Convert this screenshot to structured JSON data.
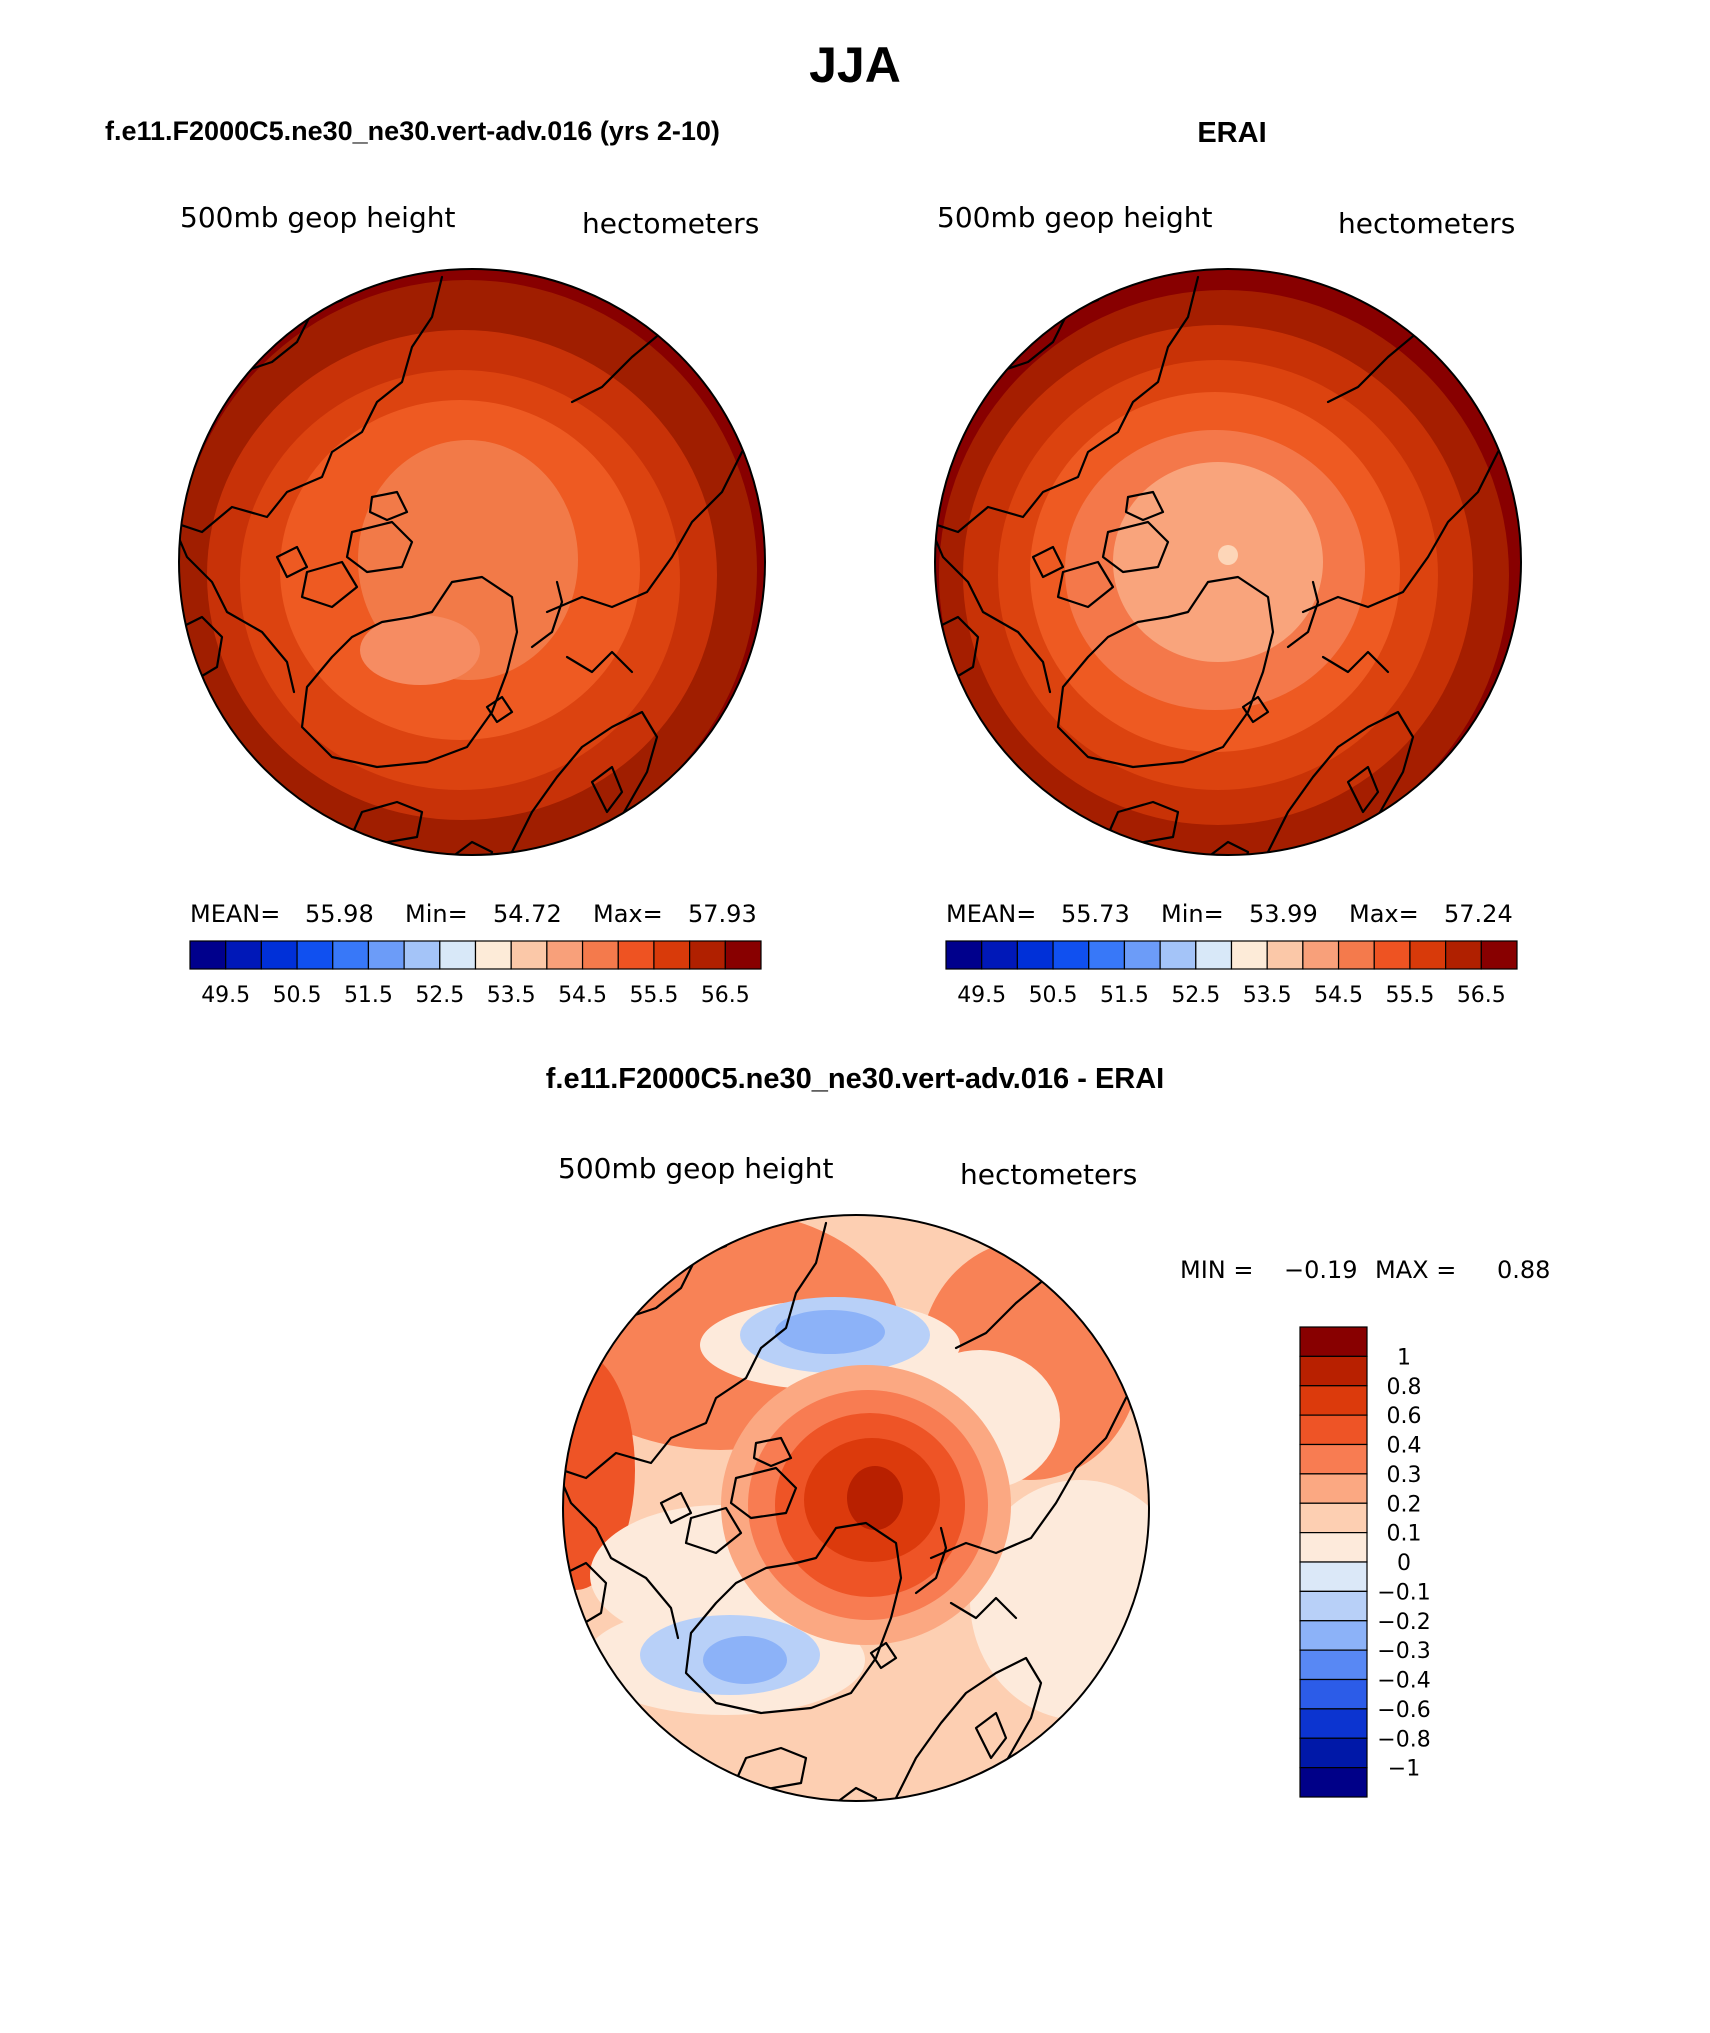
{
  "title": "JJA",
  "panels": [
    {
      "id": "model",
      "heading": "f.e11.F2000C5.ne30_ne30.vert-adv.016 (yrs 2-10)",
      "left_label": "500mb geop height",
      "right_label": "hectometers",
      "stats": {
        "mean_label": "MEAN=",
        "mean": "55.98",
        "min_label": "Min=",
        "min": "54.72",
        "max_label": "Max=",
        "max": "57.93"
      }
    },
    {
      "id": "erai",
      "heading": "ERAI",
      "left_label": "500mb geop height",
      "right_label": "hectometers",
      "stats": {
        "mean_label": "MEAN=",
        "mean": "55.73",
        "min_label": "Min=",
        "min": "53.99",
        "max_label": "Max=",
        "max": "57.24"
      }
    }
  ],
  "shared_colorbar": {
    "colors": [
      "#00008c",
      "#0018b8",
      "#0030d8",
      "#1050f0",
      "#3878f8",
      "#6c9cf8",
      "#a4c4f8",
      "#d8e8f8",
      "#fdebd8",
      "#fbc8a8",
      "#f8a07a",
      "#f47a4c",
      "#ee5322",
      "#d83a0a",
      "#b02000",
      "#880000"
    ],
    "tick_labels": [
      "49.5",
      "50.5",
      "51.5",
      "52.5",
      "53.5",
      "54.5",
      "55.5",
      "56.5"
    ]
  },
  "difference": {
    "heading": "f.e11.F2000C5.ne30_ne30.vert-adv.016 - ERAI",
    "left_label": "500mb geop height",
    "right_label": "hectometers",
    "minmax": {
      "min_label": "MIN =",
      "min": "−0.19",
      "max_label": "MAX =",
      "max": "0.88"
    },
    "colorbar": {
      "colors": [
        "#880000",
        "#b82000",
        "#dc3a0c",
        "#ee5426",
        "#f87c52",
        "#fba882",
        "#fdcfb2",
        "#fdeadb",
        "#dbe8f8",
        "#b8d0f8",
        "#8cb2f8",
        "#5888f4",
        "#2c5ce8",
        "#0c34d0",
        "#0018a8",
        "#000088"
      ],
      "tick_labels": [
        "1",
        "0.8",
        "0.6",
        "0.4",
        "0.3",
        "0.2",
        "0.1",
        "0",
        "−0.1",
        "−0.2",
        "−0.3",
        "−0.4",
        "−0.6",
        "−0.8",
        "−1"
      ]
    }
  }
}
